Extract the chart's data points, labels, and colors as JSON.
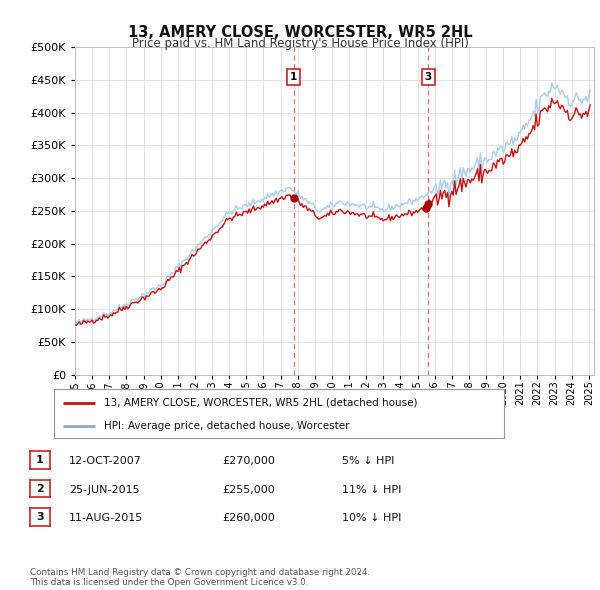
{
  "title": "13, AMERY CLOSE, WORCESTER, WR5 2HL",
  "subtitle": "Price paid vs. HM Land Registry's House Price Index (HPI)",
  "ytick_values": [
    0,
    50000,
    100000,
    150000,
    200000,
    250000,
    300000,
    350000,
    400000,
    450000,
    500000
  ],
  "ylim": [
    0,
    500000
  ],
  "xlim_start": 1995.0,
  "xlim_end": 2025.3,
  "hpi_color": "#aaccee",
  "hpi_color_dark": "#88aacc",
  "price_color": "#cc1111",
  "marker_color": "#aa0000",
  "vline_color": "#ee6666",
  "transaction1_x": 2007.78,
  "transaction1_y": 270000,
  "transaction2_x": 2015.48,
  "transaction2_y": 255000,
  "transaction3_x": 2015.62,
  "transaction3_y": 260000,
  "legend_label1": "13, AMERY CLOSE, WORCESTER, WR5 2HL (detached house)",
  "legend_label2": "HPI: Average price, detached house, Worcester",
  "table_data": [
    [
      "1",
      "12-OCT-2007",
      "£270,000",
      "5% ↓ HPI"
    ],
    [
      "2",
      "25-JUN-2015",
      "£255,000",
      "11% ↓ HPI"
    ],
    [
      "3",
      "11-AUG-2015",
      "£260,000",
      "10% ↓ HPI"
    ]
  ],
  "footnote": "Contains HM Land Registry data © Crown copyright and database right 2024.\nThis data is licensed under the Open Government Licence v3.0.",
  "background_color": "#ffffff",
  "grid_color": "#dddddd",
  "xtick_years": [
    1995,
    1996,
    1997,
    1998,
    1999,
    2000,
    2001,
    2002,
    2003,
    2004,
    2005,
    2006,
    2007,
    2008,
    2009,
    2010,
    2011,
    2012,
    2013,
    2014,
    2015,
    2016,
    2017,
    2018,
    2019,
    2020,
    2021,
    2022,
    2023,
    2024,
    2025
  ]
}
